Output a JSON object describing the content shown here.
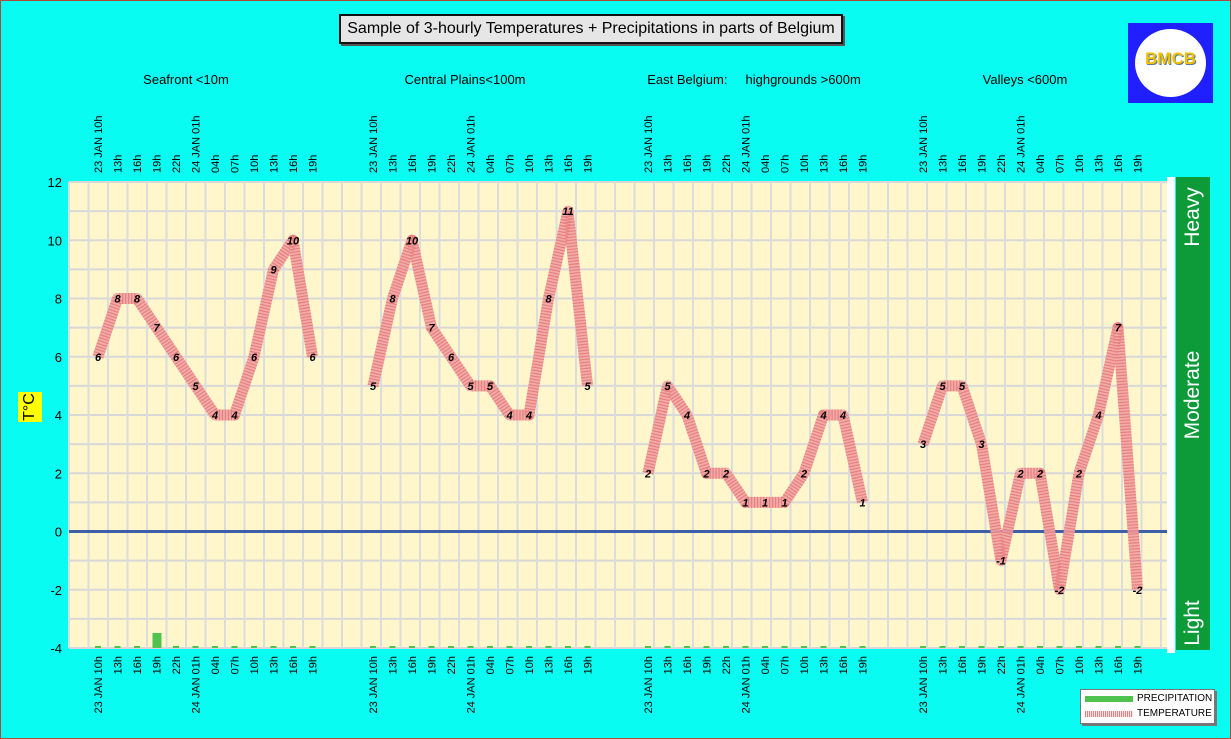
{
  "title": "Sample of 3-hourly Temperatures + Precipitations in parts of Belgium",
  "logo_text": "BMCB",
  "y_axis_label": "T°C",
  "intensity_labels": [
    "Heavy",
    "Moderate",
    "Light"
  ],
  "legend": {
    "precipitation": "PRECIPITATION",
    "temperature": "TEMPERATURE"
  },
  "colors": {
    "background": "#09fcf1",
    "plot": "#fff6cc",
    "zero_line": "#3d5fa8",
    "temperature": "#e88080",
    "precipitation": "#4fc24f",
    "intensity_bar": "#0d9b3a"
  },
  "chart_data": {
    "type": "line",
    "ylim": [
      -4,
      12
    ],
    "y_ticks": [
      12,
      10,
      8,
      6,
      4,
      2,
      0,
      -2,
      -4
    ],
    "grid": true,
    "legend_position": "bottom-right",
    "panels": [
      {
        "name": "Seafront <10m",
        "x": [
          "23 JAN 10h",
          "13h",
          "16h",
          "19h",
          "22h",
          "24 JAN 01h",
          "04h",
          "07h",
          "10h",
          "13h",
          "16h",
          "19h"
        ],
        "temperature": [
          6,
          8,
          8,
          7,
          6,
          5,
          4,
          4,
          6,
          9,
          10,
          6
        ],
        "precipitation": [
          0,
          0,
          0,
          0.5,
          0,
          0,
          0,
          0,
          0,
          0,
          0,
          0
        ]
      },
      {
        "name": "Central Plains<100m",
        "x": [
          "23 JAN 10h",
          "13h",
          "16h",
          "19h",
          "22h",
          "24 JAN 01h",
          "04h",
          "07h",
          "10h",
          "13h",
          "16h",
          "19h"
        ],
        "temperature": [
          5,
          8,
          10,
          7,
          6,
          5,
          5,
          4,
          4,
          8,
          11,
          5
        ],
        "precipitation": [
          0,
          0,
          0,
          0,
          0,
          0,
          0,
          0,
          0,
          0,
          0,
          0
        ]
      },
      {
        "name": "East Belgium:     highgrounds >600m",
        "x": [
          "23 JAN 10h",
          "13h",
          "16h",
          "19h",
          "22h",
          "24 JAN 01h",
          "04h",
          "07h",
          "10h",
          "13h",
          "16h",
          "19h"
        ],
        "temperature": [
          2,
          5,
          4,
          2,
          2,
          1,
          1,
          1,
          2,
          4,
          4,
          1
        ],
        "precipitation": [
          0,
          0,
          0,
          0,
          0,
          0,
          0,
          0,
          0,
          0,
          0,
          0
        ]
      },
      {
        "name": "Valleys <600m",
        "x": [
          "23 JAN 10h",
          "13h",
          "16h",
          "19h",
          "22h",
          "24 JAN 01h",
          "04h",
          "07h",
          "10h",
          "13h",
          "16h",
          "19h"
        ],
        "temperature": [
          3,
          5,
          5,
          3,
          -1,
          2,
          2,
          -2,
          2,
          4,
          7,
          -2
        ],
        "precipitation": [
          0,
          0,
          0,
          0,
          0,
          0,
          0,
          0,
          0,
          0,
          0,
          0
        ]
      }
    ]
  }
}
